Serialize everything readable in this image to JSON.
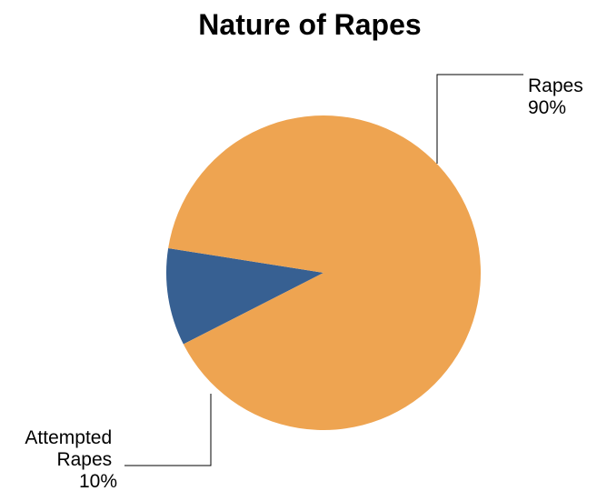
{
  "chart_data": {
    "type": "pie",
    "title": "Nature of Rapes",
    "slices": [
      {
        "label_lines": [
          "Rapes"
        ],
        "percent_label": "90%",
        "value": 90,
        "color": "#EEA451"
      },
      {
        "label_lines": [
          "Attempted",
          "Rapes"
        ],
        "percent_label": "10%",
        "value": 10,
        "color": "#376092"
      }
    ],
    "legend": "none"
  }
}
